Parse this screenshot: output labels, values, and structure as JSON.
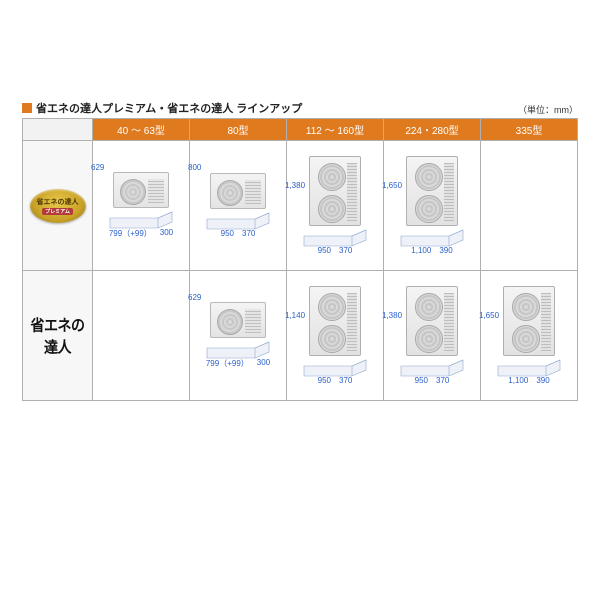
{
  "title": "省エネの達人プレミアム・省エネの達人 ラインアップ",
  "unit_note": "（単位：mm）",
  "accent_color": "#e07a1f",
  "dim_color": "#2a5fc9",
  "headers": [
    "40 ～ 63型",
    "80型",
    "112 ～ 160型",
    "224・280型",
    "335型"
  ],
  "row_labels": {
    "premium": {
      "line1": "省エネの達人",
      "line2": "プレミアム"
    },
    "standard": "省エネの達人"
  },
  "cells": {
    "premium": [
      {
        "fans": 1,
        "h": "629",
        "w": "799（+99）",
        "d": "300"
      },
      {
        "fans": 1,
        "h": "800",
        "w": "950",
        "d": "370"
      },
      {
        "fans": 2,
        "h": "1,380",
        "w": "950",
        "d": "370"
      },
      {
        "fans": 2,
        "h": "1,650",
        "w": "1,100",
        "d": "390"
      },
      null
    ],
    "standard": [
      null,
      {
        "fans": 1,
        "h": "629",
        "w": "799（+99）",
        "d": "300"
      },
      {
        "fans": 2,
        "h": "1,140",
        "w": "950",
        "d": "370"
      },
      {
        "fans": 2,
        "h": "1,380",
        "w": "950",
        "d": "370"
      },
      {
        "fans": 2,
        "h": "1,650",
        "w": "1,100",
        "d": "390"
      }
    ]
  }
}
